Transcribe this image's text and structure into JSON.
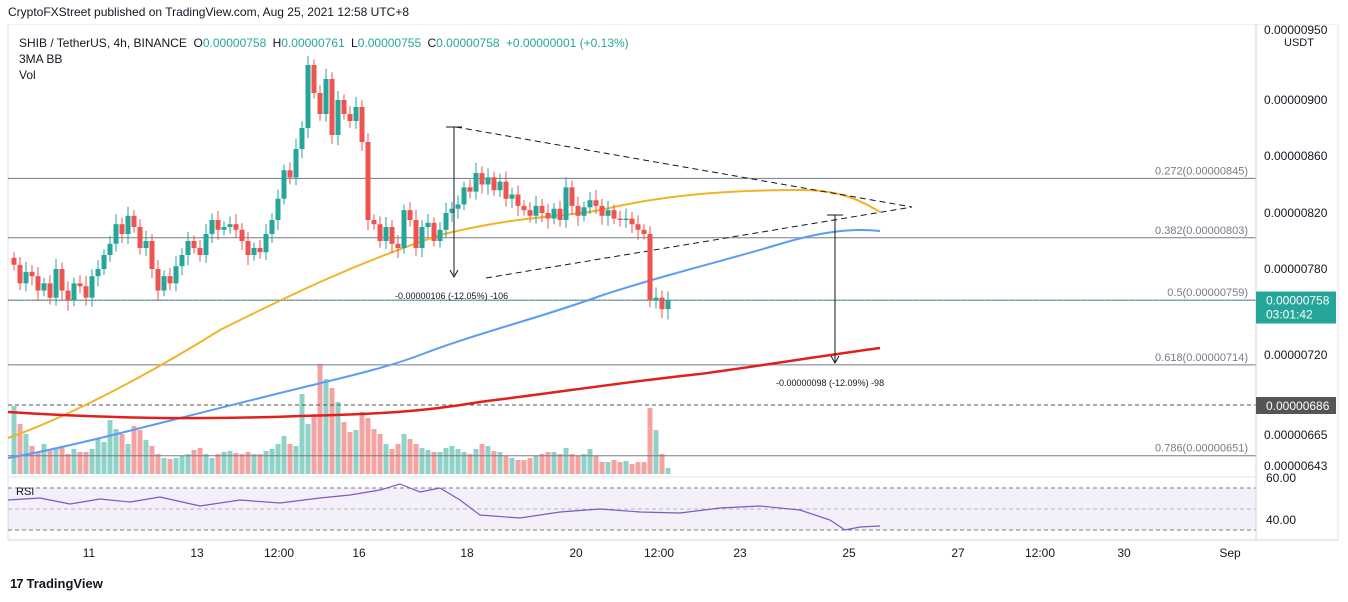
{
  "header": {
    "publisher": "CryptoFXStreet published on TradingView.com, Aug 25, 2021 12:58 UTC+8"
  },
  "legend": {
    "symbol": "SHIB / TetherUS, 4h, BINANCE",
    "o_label": "O",
    "o_value": "0.00000758",
    "h_label": "H",
    "h_value": "0.00000761",
    "l_label": "L",
    "l_value": "0.00000755",
    "c_label": "C",
    "c_value": "0.00000758",
    "change": "+0.00000001 (+0.13%)",
    "indicator1": "3MA BB",
    "indicator2": "Vol"
  },
  "footer": {
    "brand": "TradingView",
    "logo": "17"
  },
  "colors": {
    "up": "#26a69a",
    "down": "#ef5350",
    "ma_short": "#f0b429",
    "ma_mid": "#5b9cf6",
    "ma_long": "#e0201d",
    "rsi": "#7e57c2",
    "price_tag": "#26a69a",
    "tag_686": "#555555"
  },
  "chart_data": {
    "type": "candlestick",
    "title": "SHIB / TetherUS, 4h, BINANCE",
    "currency": "USDT",
    "y_axis_ticks": [
      "0.00000950",
      "0.00000900",
      "0.00000860",
      "0.00000820",
      "0.00000780",
      "0.00000720",
      "0.00000686",
      "0.00000665",
      "0.00000643"
    ],
    "ylim": [
      6.4e-06,
      9.52e-06
    ],
    "x_ticks": [
      "11",
      "13",
      "12:00",
      "16",
      "18",
      "20",
      "12:00",
      "23",
      "25",
      "27",
      "12:00",
      "30",
      "Sep"
    ],
    "close_series": [
      7.83e-06,
      7.7e-06,
      7.78e-06,
      7.75e-06,
      7.65e-06,
      7.7e-06,
      7.6e-06,
      7.8e-06,
      7.65e-06,
      7.58e-06,
      7.7e-06,
      7.68e-06,
      7.6e-06,
      7.75e-06,
      7.8e-06,
      7.9e-06,
      7.98e-06,
      8.12e-06,
      8.05e-06,
      8.18e-06,
      8.1e-06,
      7.95e-06,
      8e-06,
      7.8e-06,
      7.65e-06,
      7.75e-06,
      7.7e-06,
      7.82e-06,
      7.9e-06,
      8e-06,
      7.95e-06,
      7.9e-06,
      8.05e-06,
      8.15e-06,
      8.08e-06,
      8.1e-06,
      8.12e-06,
      8.08e-06,
      8e-06,
      7.9e-06,
      7.95e-06,
      7.92e-06,
      8.05e-06,
      8.15e-06,
      8.3e-06,
      8.5e-06,
      8.45e-06,
      8.65e-06,
      8.8e-06,
      9.25e-06,
      9.05e-06,
      8.9e-06,
      9.15e-06,
      8.75e-06,
      9e-06,
      8.9e-06,
      8.85e-06,
      8.95e-06,
      8.7e-06,
      8.15e-06,
      8.12e-06,
      8e-06,
      8.1e-06,
      7.98e-06,
      7.95e-06,
      8.22e-06,
      8.15e-06,
      7.95e-06,
      8.1e-06,
      8.13e-06,
      8e-06,
      8.08e-06,
      8.2e-06,
      8.23e-06,
      8.26e-06,
      8.38e-06,
      8.35e-06,
      8.48e-06,
      8.4e-06,
      8.45e-06,
      8.36e-06,
      8.42e-06,
      8.3e-06,
      8.33e-06,
      8.25e-06,
      8.22e-06,
      8.18e-06,
      8.25e-06,
      8.2e-06,
      8.16e-06,
      8.23e-06,
      8.15e-06,
      8.38e-06,
      8.25e-06,
      8.18e-06,
      8.24e-06,
      8.29e-06,
      8.25e-06,
      8.18e-06,
      8.22e-06,
      8.16e-06,
      8.15e-06,
      8.16e-06,
      8.12e-06,
      8.08e-06,
      8.05e-06,
      7.58e-06,
      7.6e-06,
      7.52e-06,
      7.58e-06
    ],
    "fib_levels": [
      {
        "label": "0.272(0.00000845)",
        "value": 8.45e-06
      },
      {
        "label": "0.382(0.00000803)",
        "value": 8.03e-06
      },
      {
        "label": "0.5(0.00000759)",
        "value": 7.59e-06
      },
      {
        "label": "0.618(0.00000714)",
        "value": 7.14e-06
      },
      {
        "label": "0.786(0.00000651)",
        "value": 6.51e-06
      }
    ],
    "annotations": [
      "-0.00000106 (-12.05%) -106",
      "-0.00000098 (-12.09%) -98"
    ],
    "price_tag": "0.00000758",
    "countdown": "03:01:42",
    "level_686": "0.00000686",
    "rsi": {
      "label": "RSI",
      "ticks": [
        "60.00",
        "40.00"
      ]
    }
  }
}
